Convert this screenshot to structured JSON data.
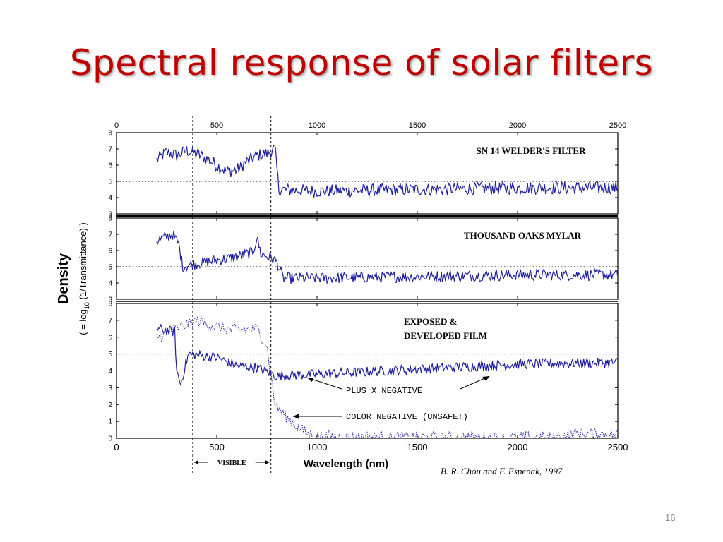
{
  "slide": {
    "title": "Spectral response of solar filters",
    "number": "16"
  },
  "chart_data": {
    "type": "line",
    "x_axis": {
      "label": "Wavelength (nm)",
      "range": [
        0,
        2500
      ],
      "ticks": [
        "0",
        "500",
        "1000",
        "1500",
        "2000",
        "2500"
      ]
    },
    "y_axis": {
      "label_main": "Density",
      "label_sub": "( = log",
      "label_sub_subscript": "10",
      "label_sub_rest": " (1/Transmittance) )"
    },
    "visible_band": {
      "label": "VISIBLE",
      "from": 380,
      "to": 770
    },
    "credit": "B. R. Chou and F. Espenak,  1997",
    "colors": {
      "line": "#1f1f9e",
      "title": "#c00000"
    },
    "panels": [
      {
        "title": "SN 14 WELDER'S FILTER",
        "ylim": [
          3,
          8
        ],
        "y_ticks": [
          "3",
          "4",
          "5",
          "6",
          "7",
          "8"
        ],
        "reference_line": 5,
        "series": [
          {
            "style": "solid",
            "points": [
              [
                200,
                6.3
              ],
              [
                250,
                6.8
              ],
              [
                300,
                6.6
              ],
              [
                350,
                6.9
              ],
              [
                400,
                6.7
              ],
              [
                450,
                6.4
              ],
              [
                500,
                6.0
              ],
              [
                550,
                5.6
              ],
              [
                600,
                5.7
              ],
              [
                650,
                6.2
              ],
              [
                700,
                6.6
              ],
              [
                750,
                6.7
              ],
              [
                790,
                7.0
              ],
              [
                810,
                4.5
              ],
              [
                1000,
                4.4
              ],
              [
                1500,
                4.5
              ],
              [
                2000,
                4.6
              ],
              [
                2500,
                4.6
              ]
            ],
            "noise": 0.4
          }
        ]
      },
      {
        "title": "THOUSAND OAKS MYLAR",
        "ylim": [
          3,
          8
        ],
        "y_ticks": [
          "3",
          "4",
          "5",
          "6",
          "7",
          "8"
        ],
        "reference_line": 5,
        "series": [
          {
            "style": "solid",
            "points": [
              [
                200,
                6.6
              ],
              [
                280,
                7.0
              ],
              [
                310,
                6.4
              ],
              [
                330,
                5.0
              ],
              [
                400,
                5.2
              ],
              [
                500,
                5.4
              ],
              [
                600,
                5.6
              ],
              [
                680,
                5.9
              ],
              [
                700,
                6.8
              ],
              [
                720,
                5.8
              ],
              [
                780,
                5.5
              ],
              [
                800,
                5.3
              ],
              [
                830,
                4.3
              ],
              [
                1000,
                4.3
              ],
              [
                1500,
                4.4
              ],
              [
                2000,
                4.5
              ],
              [
                2500,
                4.5
              ]
            ],
            "noise": 0.35
          },
          {
            "style": "solid",
            "points": [
              [
                2000,
                3.0
              ],
              [
                2500,
                3.0
              ]
            ],
            "noise": 0
          }
        ]
      },
      {
        "title": "EXPOSED &",
        "title_line2": "DEVELOPED FILM",
        "ylim": [
          0,
          8
        ],
        "y_ticks": [
          "0",
          "1",
          "2",
          "3",
          "4",
          "5",
          "6",
          "7",
          "8"
        ],
        "reference_line": 5,
        "series": [
          {
            "name": "PLUS X NEGATIVE",
            "style": "solid",
            "points": [
              [
                200,
                6.5
              ],
              [
                290,
                6.3
              ],
              [
                300,
                4.0
              ],
              [
                320,
                3.2
              ],
              [
                340,
                4.2
              ],
              [
                360,
                5.0
              ],
              [
                500,
                4.8
              ],
              [
                600,
                4.3
              ],
              [
                700,
                4.2
              ],
              [
                800,
                3.7
              ],
              [
                1000,
                3.8
              ],
              [
                1500,
                4.1
              ],
              [
                2000,
                4.4
              ],
              [
                2500,
                4.5
              ]
            ],
            "noise": 0.3
          },
          {
            "name": "COLOR NEGATIVE (UNSAFE!)",
            "style": "dotted",
            "points": [
              [
                200,
                6.0
              ],
              [
                300,
                6.5
              ],
              [
                400,
                7.0
              ],
              [
                500,
                6.6
              ],
              [
                600,
                6.4
              ],
              [
                700,
                6.5
              ],
              [
                750,
                5.5
              ],
              [
                790,
                2.0
              ],
              [
                850,
                1.2
              ],
              [
                900,
                0.7
              ],
              [
                950,
                0.3
              ],
              [
                1000,
                0.1
              ],
              [
                1500,
                0.05
              ],
              [
                2200,
                0.05
              ],
              [
                2300,
                0.3
              ],
              [
                2500,
                0.2
              ]
            ],
            "noise": 0.35
          }
        ],
        "annotations": [
          {
            "text": "PLUS X NEGATIVE"
          },
          {
            "text": "COLOR NEGATIVE (UNSAFE!)"
          }
        ]
      }
    ]
  }
}
